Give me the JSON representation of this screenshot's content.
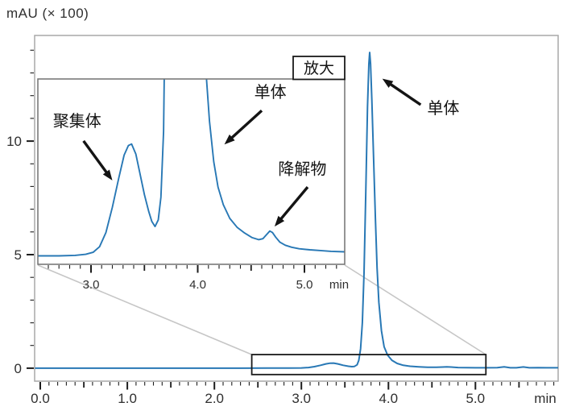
{
  "colors": {
    "trace": "#2878b5",
    "spine": "#a9a9a9",
    "tick": "#1c1c1c",
    "text": "#2f2f2f",
    "annotation": "#141414",
    "connector": "#c6c6c6",
    "inset_border": "#707070",
    "box": "#1a1a1a",
    "background": "#ffffff"
  },
  "chart_data": {
    "type": "line",
    "unit_label": "mAU (× 100)",
    "x_unit": "min",
    "peaks": [
      {
        "name": "聚集体",
        "retention_min": 3.38,
        "height_x100mAU": 0.23
      },
      {
        "name": "单体",
        "retention_min": 3.78,
        "height_x100mAU": 13.9
      },
      {
        "name": "降解物",
        "retention_min": 4.68,
        "height_x100mAU": 0.05
      }
    ],
    "main": {
      "xlim": [
        -0.065,
        5.95
      ],
      "ylim": [
        -0.57,
        14.65
      ],
      "x_ticks": {
        "values": [
          0,
          1,
          2,
          3,
          4,
          5
        ],
        "labels": [
          "0.0",
          "1.0",
          "2.0",
          "3.0",
          "4.0",
          "5.0"
        ],
        "unit": "min"
      },
      "x_minor_step": 0.1,
      "y_ticks": {
        "values": [
          0,
          5,
          10
        ],
        "labels": [
          "0",
          "5",
          "10"
        ]
      },
      "y_minor_step": 1,
      "zoom_region": {
        "x_range": [
          2.43,
          5.12
        ],
        "y_range": [
          -0.28,
          0.6
        ]
      },
      "series": [
        [
          -0.06,
          0.0
        ],
        [
          0.3,
          0.0
        ],
        [
          0.8,
          0.0
        ],
        [
          1.3,
          0.0
        ],
        [
          1.8,
          0.0
        ],
        [
          2.3,
          0.0
        ],
        [
          2.6,
          0.004
        ],
        [
          2.85,
          0.007
        ],
        [
          3.0,
          0.012
        ],
        [
          3.08,
          0.03
        ],
        [
          3.15,
          0.07
        ],
        [
          3.22,
          0.13
        ],
        [
          3.28,
          0.19
        ],
        [
          3.33,
          0.22
        ],
        [
          3.37,
          0.225
        ],
        [
          3.42,
          0.19
        ],
        [
          3.48,
          0.13
        ],
        [
          3.54,
          0.085
        ],
        [
          3.58,
          0.068
        ],
        [
          3.61,
          0.08
        ],
        [
          3.64,
          0.15
        ],
        [
          3.66,
          0.35
        ],
        [
          3.68,
          0.85
        ],
        [
          3.7,
          2.0
        ],
        [
          3.72,
          4.2
        ],
        [
          3.74,
          7.8
        ],
        [
          3.76,
          11.5
        ],
        [
          3.775,
          13.4
        ],
        [
          3.785,
          13.9
        ],
        [
          3.795,
          13.4
        ],
        [
          3.81,
          11.8
        ],
        [
          3.83,
          9.2
        ],
        [
          3.85,
          6.6
        ],
        [
          3.87,
          4.4
        ],
        [
          3.89,
          2.9
        ],
        [
          3.92,
          1.65
        ],
        [
          3.95,
          0.95
        ],
        [
          3.99,
          0.58
        ],
        [
          4.04,
          0.35
        ],
        [
          4.1,
          0.21
        ],
        [
          4.17,
          0.13
        ],
        [
          4.25,
          0.085
        ],
        [
          4.35,
          0.06
        ],
        [
          4.45,
          0.045
        ],
        [
          4.55,
          0.04
        ],
        [
          4.62,
          0.05
        ],
        [
          4.67,
          0.062
        ],
        [
          4.72,
          0.05
        ],
        [
          4.8,
          0.03
        ],
        [
          4.9,
          0.022
        ],
        [
          5.0,
          0.02
        ],
        [
          5.12,
          0.02
        ],
        [
          5.25,
          0.025
        ],
        [
          5.33,
          0.06
        ],
        [
          5.4,
          0.02
        ],
        [
          5.47,
          0.02
        ],
        [
          5.55,
          0.055
        ],
        [
          5.62,
          0.02
        ],
        [
          5.72,
          0.025
        ],
        [
          5.82,
          0.02
        ],
        [
          5.95,
          0.02
        ]
      ],
      "annotation": {
        "label": "单体",
        "label_pos": [
          4.63,
          11.45
        ],
        "arrow_tail": [
          4.37,
          11.6
        ],
        "arrow_tip": [
          3.93,
          12.75
        ]
      }
    },
    "inset": {
      "tag_label": "放大",
      "xlim": [
        2.502,
        5.377
      ],
      "ylim": [
        -0.0127,
        0.3535
      ],
      "x_ticks": {
        "values": [
          3,
          4,
          5
        ],
        "labels": [
          "3.0",
          "4.0",
          "5.0"
        ],
        "unit": "min"
      },
      "x_minor_step": 0.1,
      "series": [
        [
          2.502,
          0.004
        ],
        [
          2.7,
          0.004
        ],
        [
          2.85,
          0.005
        ],
        [
          2.95,
          0.007
        ],
        [
          3.02,
          0.011
        ],
        [
          3.08,
          0.022
        ],
        [
          3.14,
          0.05
        ],
        [
          3.2,
          0.1
        ],
        [
          3.26,
          0.158
        ],
        [
          3.31,
          0.203
        ],
        [
          3.35,
          0.222
        ],
        [
          3.38,
          0.225
        ],
        [
          3.42,
          0.205
        ],
        [
          3.46,
          0.165
        ],
        [
          3.5,
          0.125
        ],
        [
          3.54,
          0.092
        ],
        [
          3.57,
          0.072
        ],
        [
          3.6,
          0.062
        ],
        [
          3.63,
          0.075
        ],
        [
          3.655,
          0.12
        ],
        [
          3.68,
          0.25
        ],
        [
          3.7,
          0.6
        ],
        [
          3.72,
          1.5
        ],
        [
          3.78,
          20.0
        ],
        [
          3.84,
          5.0
        ],
        [
          4.0,
          0.8
        ],
        [
          4.05,
          0.5
        ],
        [
          4.08,
          0.36
        ],
        [
          4.11,
          0.27
        ],
        [
          4.15,
          0.19
        ],
        [
          4.19,
          0.14
        ],
        [
          4.24,
          0.105
        ],
        [
          4.3,
          0.078
        ],
        [
          4.37,
          0.06
        ],
        [
          4.44,
          0.049
        ],
        [
          4.51,
          0.04
        ],
        [
          4.57,
          0.036
        ],
        [
          4.61,
          0.038
        ],
        [
          4.645,
          0.046
        ],
        [
          4.675,
          0.053
        ],
        [
          4.7,
          0.05
        ],
        [
          4.73,
          0.041
        ],
        [
          4.77,
          0.031
        ],
        [
          4.82,
          0.025
        ],
        [
          4.88,
          0.021
        ],
        [
          4.95,
          0.018
        ],
        [
          5.05,
          0.016
        ],
        [
          5.15,
          0.0145
        ],
        [
          5.25,
          0.013
        ],
        [
          5.377,
          0.012
        ]
      ],
      "annotations": [
        {
          "id": "aggregate",
          "label": "聚集体",
          "label_pos": [
            2.87,
            0.271
          ],
          "arrow_tail": [
            2.93,
            0.231
          ],
          "arrow_tip": [
            3.2,
            0.153
          ]
        },
        {
          "id": "monomer",
          "label": "单体",
          "label_pos": [
            4.68,
            0.328
          ],
          "arrow_tail": [
            4.6,
            0.291
          ],
          "arrow_tip": [
            4.25,
            0.224
          ]
        },
        {
          "id": "degradant",
          "label": "降解物",
          "label_pos": [
            4.98,
            0.176
          ],
          "arrow_tail": [
            5.03,
            0.14
          ],
          "arrow_tip": [
            4.72,
            0.062
          ]
        }
      ]
    }
  }
}
